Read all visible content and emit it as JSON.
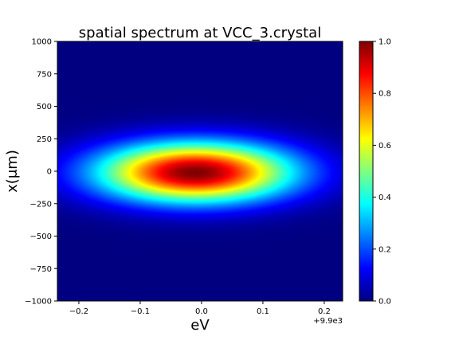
{
  "chart_data": {
    "type": "heatmap",
    "title": "spatial spectrum at VCC_3.crystal",
    "xlabel": "eV",
    "ylabel": "x(μm)",
    "x_offset_label": "+9.9e3",
    "x_offset": 9900,
    "xlim": [
      9899.765,
      9900.23
    ],
    "ylim": [
      -1000,
      1000
    ],
    "x_ticks": [
      -0.2,
      -0.1,
      0.0,
      0.1,
      0.2
    ],
    "x_tick_labels": [
      "−0.2",
      "−0.1",
      "0.0",
      "0.1",
      "0.2"
    ],
    "y_ticks": [
      1000,
      750,
      500,
      250,
      0,
      -250,
      -500,
      -750,
      -1000
    ],
    "y_tick_labels": [
      "1000",
      "750",
      "500",
      "250",
      "0",
      "−250",
      "−500",
      "−750",
      "−1000"
    ],
    "colormap": "jet",
    "colorbar": {
      "range": [
        0.0,
        1.0
      ],
      "ticks": [
        1.0,
        0.8,
        0.6,
        0.4,
        0.2,
        0.0
      ],
      "tick_labels": [
        "1.0",
        "0.8",
        "0.6",
        "0.4",
        "0.2",
        "0.0"
      ]
    },
    "peak": {
      "x": 9899.99,
      "y": -10,
      "value": 1.0
    },
    "sigma_x_ev": 0.11,
    "sigma_y_um": 160
  }
}
